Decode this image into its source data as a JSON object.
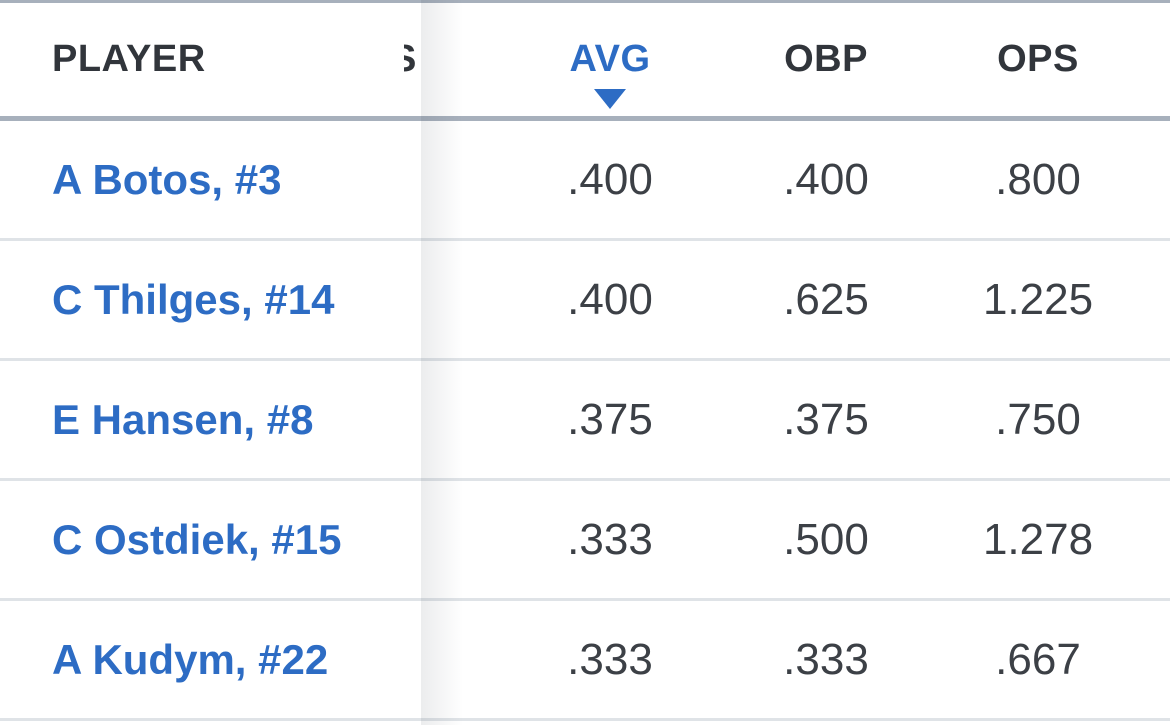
{
  "table": {
    "columns": {
      "player": {
        "label": "PLAYER",
        "sortable": true
      },
      "avg": {
        "label": "AVG",
        "sortable": true
      },
      "obp": {
        "label": "OBP",
        "sortable": true
      },
      "ops": {
        "label": "OPS",
        "sortable": true
      }
    },
    "clipped_column_letter": "S",
    "sort": {
      "column": "AVG",
      "direction": "desc",
      "icon": "triangle-down"
    },
    "rows": [
      {
        "player": "A Botos, #3",
        "avg": ".400",
        "obp": ".400",
        "ops": ".800"
      },
      {
        "player": "C Thilges, #14",
        "avg": ".400",
        "obp": ".625",
        "ops": "1.225"
      },
      {
        "player": "E Hansen, #8",
        "avg": ".375",
        "obp": ".375",
        "ops": ".750"
      },
      {
        "player": "C Ostdiek, #15",
        "avg": ".333",
        "obp": ".500",
        "ops": "1.278"
      },
      {
        "player": "A Kudym, #22",
        "avg": ".333",
        "obp": ".333",
        "ops": ".667"
      }
    ]
  },
  "colors": {
    "link_blue": "#2d6cc4",
    "sorted_header_blue": "#2d6cc4",
    "header_text": "#31353b",
    "value_text": "#3c4046",
    "header_border": "#a7b0bc",
    "row_border": "#dfe3e7",
    "background": "#ffffff"
  }
}
